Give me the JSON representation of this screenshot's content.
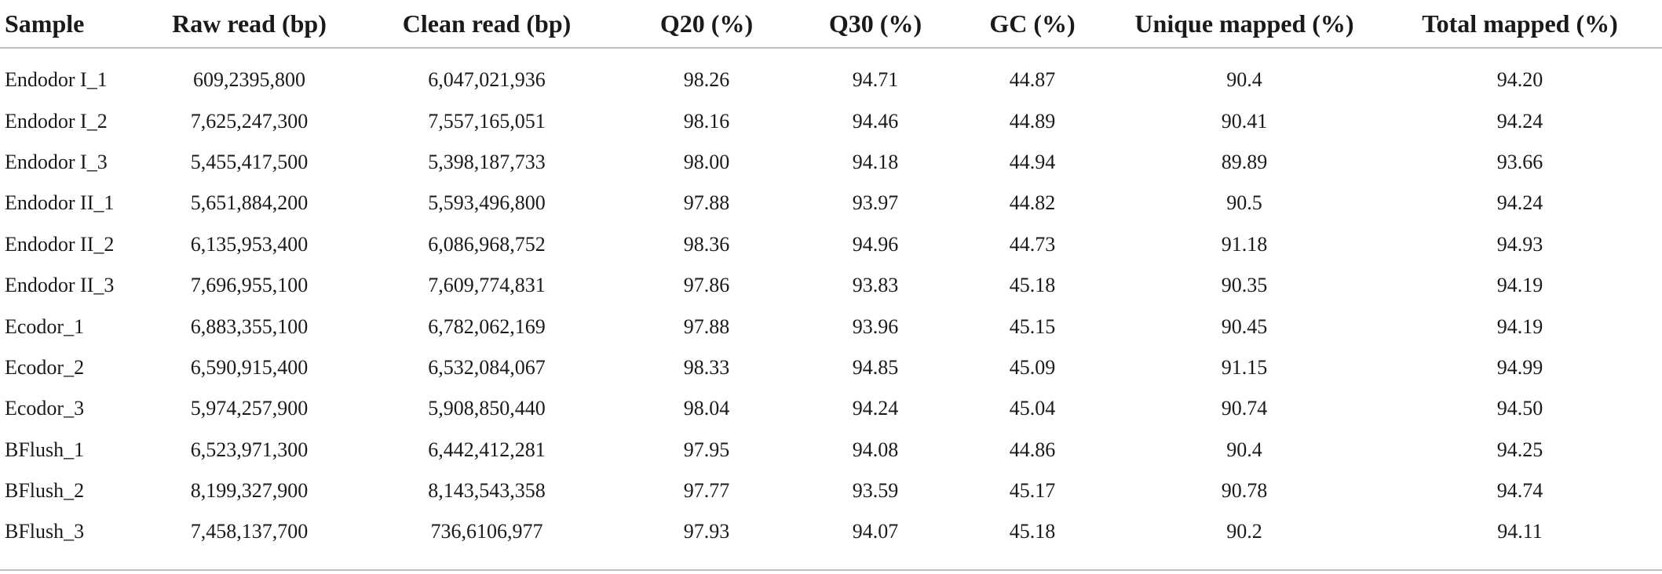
{
  "table": {
    "headers": [
      "Sample",
      "Raw read (bp)",
      "Clean read (bp)",
      "Q20 (%)",
      "Q30 (%)",
      "GC (%)",
      "Unique mapped (%)",
      "Total mapped (%)"
    ],
    "rows": [
      [
        "Endodor I_1",
        "609,2395,800",
        "6,047,021,936",
        "98.26",
        "94.71",
        "44.87",
        "90.4",
        "94.20"
      ],
      [
        "Endodor I_2",
        "7,625,247,300",
        "7,557,165,051",
        "98.16",
        "94.46",
        "44.89",
        "90.41",
        "94.24"
      ],
      [
        "Endodor I_3",
        "5,455,417,500",
        "5,398,187,733",
        "98.00",
        "94.18",
        "44.94",
        "89.89",
        "93.66"
      ],
      [
        "Endodor II_1",
        "5,651,884,200",
        "5,593,496,800",
        "97.88",
        "93.97",
        "44.82",
        "90.5",
        "94.24"
      ],
      [
        "Endodor II_2",
        "6,135,953,400",
        "6,086,968,752",
        "98.36",
        "94.96",
        "44.73",
        "91.18",
        "94.93"
      ],
      [
        "Endodor II_3",
        "7,696,955,100",
        "7,609,774,831",
        "97.86",
        "93.83",
        "45.18",
        "90.35",
        "94.19"
      ],
      [
        "Ecodor_1",
        "6,883,355,100",
        "6,782,062,169",
        "97.88",
        "93.96",
        "45.15",
        "90.45",
        "94.19"
      ],
      [
        "Ecodor_2",
        "6,590,915,400",
        "6,532,084,067",
        "98.33",
        "94.85",
        "45.09",
        "91.15",
        "94.99"
      ],
      [
        "Ecodor_3",
        "5,974,257,900",
        "5,908,850,440",
        "98.04",
        "94.24",
        "45.04",
        "90.74",
        "94.50"
      ],
      [
        "BFlush_1",
        "6,523,971,300",
        "6,442,412,281",
        "97.95",
        "94.08",
        "44.86",
        "90.4",
        "94.25"
      ],
      [
        "BFlush_2",
        "8,199,327,900",
        "8,143,543,358",
        "97.77",
        "93.59",
        "45.17",
        "90.78",
        "94.74"
      ],
      [
        "BFlush_3",
        "7,458,137,700",
        "736,6106,977",
        "97.93",
        "94.07",
        "45.18",
        "90.2",
        "94.11"
      ]
    ]
  }
}
